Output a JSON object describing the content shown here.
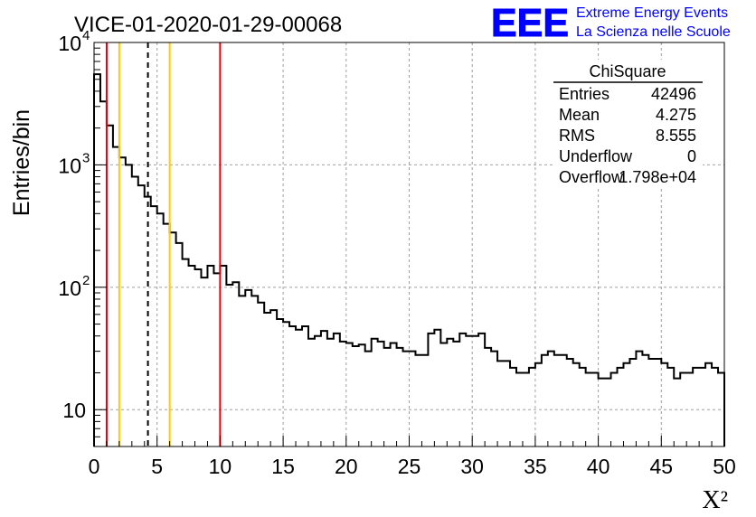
{
  "chart_data": {
    "type": "histogram",
    "title": "VICE-01-2020-01-29-00068",
    "xlabel": "X²",
    "ylabel": "Entries/bin",
    "xlim": [
      0,
      50
    ],
    "ylim": [
      5,
      10000
    ],
    "yscale": "log",
    "bin_width": 0.5,
    "x_ticks": [
      "0",
      "5",
      "10",
      "15",
      "20",
      "25",
      "30",
      "35",
      "40",
      "45",
      "50"
    ],
    "y_ticks": [
      {
        "value": 10,
        "label": "10"
      },
      {
        "value": 100,
        "label": "10",
        "exp": "2"
      },
      {
        "value": 1000,
        "label": "10",
        "exp": "3"
      },
      {
        "value": 10000,
        "label": "10",
        "exp": "4"
      }
    ],
    "grid": true,
    "bin_contents": [
      5500,
      3300,
      2100,
      1400,
      1150,
      1000,
      800,
      680,
      550,
      460,
      400,
      330,
      280,
      230,
      170,
      150,
      140,
      120,
      150,
      130,
      150,
      105,
      110,
      85,
      95,
      85,
      75,
      62,
      65,
      55,
      52,
      48,
      45,
      48,
      38,
      40,
      44,
      38,
      42,
      36,
      35,
      33,
      34,
      30,
      38,
      36,
      32,
      35,
      32,
      30,
      30,
      28,
      28,
      42,
      45,
      35,
      38,
      36,
      42,
      40,
      40,
      42,
      32,
      30,
      25,
      25,
      22,
      20,
      20,
      22,
      24,
      28,
      30,
      28,
      28,
      26,
      24,
      22,
      20,
      20,
      18,
      18,
      20,
      22,
      24,
      26,
      30,
      28,
      26,
      26,
      24,
      22,
      18,
      20,
      20,
      22,
      22,
      24,
      22,
      20
    ],
    "vertical_lines": [
      {
        "x": 1.0,
        "color": "#e8000b",
        "style": "solid"
      },
      {
        "x": 2.0,
        "color": "#ffcc00",
        "style": "solid"
      },
      {
        "x": 4.275,
        "color": "#000000",
        "style": "dashed"
      },
      {
        "x": 6.0,
        "color": "#ffcc00",
        "style": "solid"
      },
      {
        "x": 10.0,
        "color": "#e8000b",
        "style": "solid"
      }
    ],
    "stats_box": {
      "name": "ChiSquare",
      "rows": [
        {
          "label": "Entries",
          "value": "42496"
        },
        {
          "label": "Mean",
          "value": "4.275"
        },
        {
          "label": "RMS",
          "value": "8.555"
        },
        {
          "label": "Underflow",
          "value": "0"
        },
        {
          "label": "Overflow",
          "value": "1.798e+04"
        }
      ]
    }
  },
  "logo": {
    "letters": "EEE",
    "line1": "Extreme Energy Events",
    "line2": "La Scienza nelle Scuole",
    "color": "#0000ff"
  },
  "colors": {
    "histogram": "#000000",
    "grid": "#a0a0a0",
    "frame": "#000000"
  }
}
